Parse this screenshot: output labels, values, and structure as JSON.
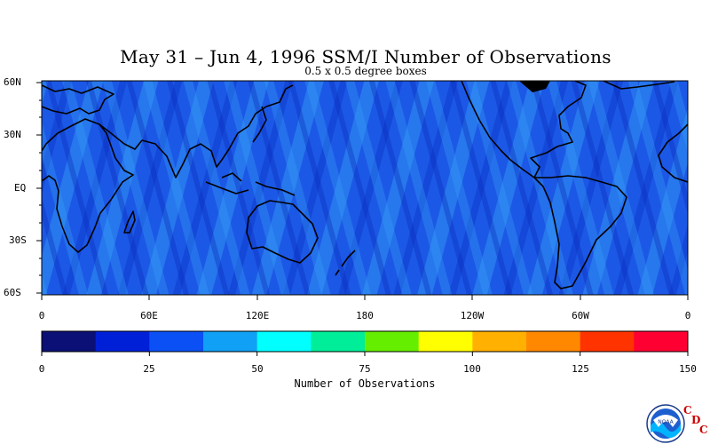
{
  "title": "May 31 – Jun 4, 1996 SSM/I Number of Observations",
  "subtitle": "0.5 x 0.5 degree boxes",
  "map": {
    "lat_labels": [
      "60N",
      "30N",
      "EQ",
      "30S",
      "60S"
    ],
    "lon_labels": [
      "0",
      "60E",
      "120E",
      "180",
      "120W",
      "60W",
      "0"
    ],
    "ocean_color": "#1a5bea"
  },
  "colorbar": {
    "title": "Number of Observations",
    "tick_labels": [
      "0",
      "25",
      "50",
      "75",
      "100",
      "125",
      "150"
    ],
    "colors": [
      "#0a1075",
      "#0020d8",
      "#0a50f5",
      "#10a0f5",
      "#00ffff",
      "#00ee99",
      "#66ee00",
      "#ffff00",
      "#ffb000",
      "#ff8800",
      "#ff3300",
      "#ff0033"
    ]
  },
  "logo": {
    "text": "NOAA",
    "cdc_letters": [
      "C",
      "D",
      "C"
    ]
  }
}
